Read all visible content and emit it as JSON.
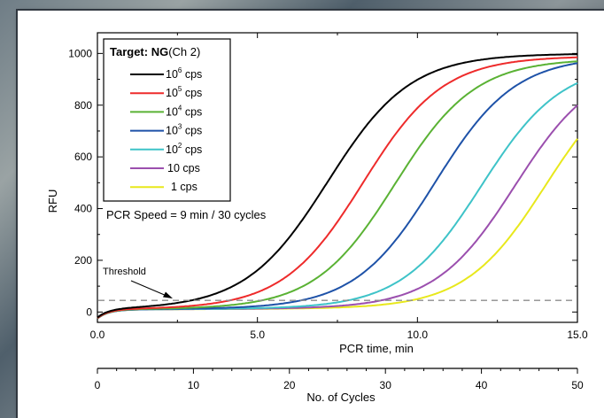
{
  "chart_data": {
    "type": "line",
    "title": "",
    "xlabel": "PCR time, min",
    "x2label": "No. of Cycles",
    "ylabel": "RFU",
    "xlim": [
      0,
      15
    ],
    "x2lim": [
      0,
      50
    ],
    "ylim": [
      -40,
      1080
    ],
    "xticks": [
      0,
      5,
      10,
      15
    ],
    "xtick_labels": [
      "0.0",
      "5.0",
      "10.0",
      "15.0"
    ],
    "x2ticks": [
      0,
      10,
      20,
      30,
      40,
      50
    ],
    "x2tick_labels": [
      "0",
      "10",
      "20",
      "30",
      "40",
      "50"
    ],
    "yticks": [
      0,
      200,
      400,
      600,
      800,
      1000
    ],
    "ytick_labels": [
      "0",
      "200",
      "400",
      "600",
      "800",
      "1000"
    ],
    "grid": false,
    "legend_position": "top-left",
    "legend_title_bold": "Target: NG",
    "legend_title_rest": "(Ch 2)",
    "annotation_speed": "PCR Speed = 9 min / 30 cycles",
    "threshold": {
      "label": "Threshold",
      "value": 45,
      "color": "#8c8c8c"
    },
    "baseline": {
      "start": -25,
      "plateau": 10
    },
    "series": [
      {
        "name_base": "10",
        "name_exp": "6",
        "name_unit": "cps",
        "color": "#000000",
        "ymax": 985,
        "midpoint": 7.2,
        "slope": 0.78
      },
      {
        "name_base": "10",
        "name_exp": "5",
        "name_unit": "cps",
        "color": "#ee2b2b",
        "ymax": 975,
        "midpoint": 8.3,
        "slope": 0.8
      },
      {
        "name_base": "10",
        "name_exp": "4",
        "name_unit": "cps",
        "color": "#5ab234",
        "ymax": 965,
        "midpoint": 9.3,
        "slope": 0.8
      },
      {
        "name_base": "10",
        "name_exp": "3",
        "name_unit": "cps",
        "color": "#1e52a8",
        "ymax": 975,
        "midpoint": 10.55,
        "slope": 0.8
      },
      {
        "name_base": "10",
        "name_exp": "2",
        "name_unit": "cps",
        "color": "#3ec3c8",
        "ymax": 950,
        "midpoint": 12.0,
        "slope": 0.8
      },
      {
        "name_base": "10",
        "name_exp": "",
        "name_unit": "cps",
        "color": "#9b4fae",
        "ymax": 950,
        "midpoint": 13.05,
        "slope": 0.8
      },
      {
        "name_base": "1",
        "name_exp": "",
        "name_unit": "cps",
        "color": "#e8e81c",
        "ymax": 950,
        "midpoint": 14.0,
        "slope": 0.8
      }
    ]
  }
}
